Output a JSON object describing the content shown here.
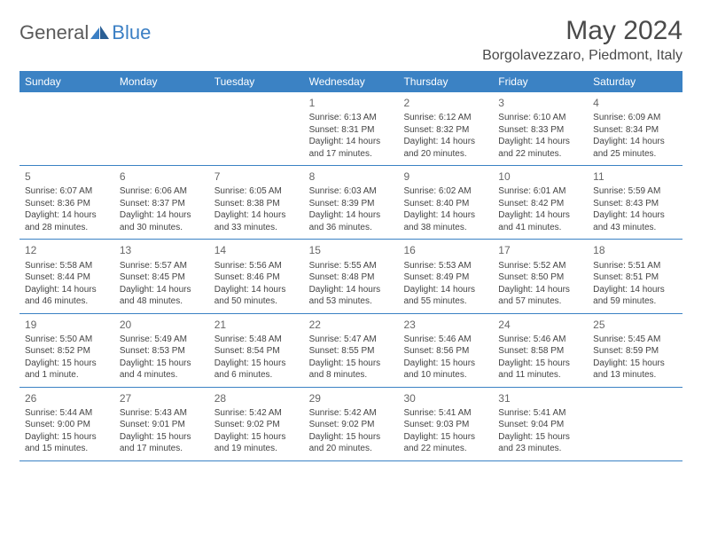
{
  "logo": {
    "text1": "General",
    "text2": "Blue"
  },
  "title": "May 2024",
  "location": "Borgolavezzaro, Piedmont, Italy",
  "colors": {
    "header_bg": "#3b82c4",
    "header_text": "#ffffff",
    "border": "#3b82c4",
    "body_text": "#444444",
    "daynum_text": "#666666",
    "title_text": "#4a4a4a",
    "logo_gray": "#5a5a5a",
    "logo_blue": "#3b7fc4",
    "background": "#ffffff"
  },
  "typography": {
    "title_fontsize": 30,
    "location_fontsize": 16,
    "dayheader_fontsize": 12,
    "daynum_fontsize": 12,
    "cell_fontsize": 10,
    "logo_fontsize": 22,
    "font_family": "Arial"
  },
  "dayNames": [
    "Sunday",
    "Monday",
    "Tuesday",
    "Wednesday",
    "Thursday",
    "Friday",
    "Saturday"
  ],
  "weeks": [
    [
      {
        "n": "",
        "l1": "",
        "l2": "",
        "l3": "",
        "l4": ""
      },
      {
        "n": "",
        "l1": "",
        "l2": "",
        "l3": "",
        "l4": ""
      },
      {
        "n": "",
        "l1": "",
        "l2": "",
        "l3": "",
        "l4": ""
      },
      {
        "n": "1",
        "l1": "Sunrise: 6:13 AM",
        "l2": "Sunset: 8:31 PM",
        "l3": "Daylight: 14 hours",
        "l4": "and 17 minutes."
      },
      {
        "n": "2",
        "l1": "Sunrise: 6:12 AM",
        "l2": "Sunset: 8:32 PM",
        "l3": "Daylight: 14 hours",
        "l4": "and 20 minutes."
      },
      {
        "n": "3",
        "l1": "Sunrise: 6:10 AM",
        "l2": "Sunset: 8:33 PM",
        "l3": "Daylight: 14 hours",
        "l4": "and 22 minutes."
      },
      {
        "n": "4",
        "l1": "Sunrise: 6:09 AM",
        "l2": "Sunset: 8:34 PM",
        "l3": "Daylight: 14 hours",
        "l4": "and 25 minutes."
      }
    ],
    [
      {
        "n": "5",
        "l1": "Sunrise: 6:07 AM",
        "l2": "Sunset: 8:36 PM",
        "l3": "Daylight: 14 hours",
        "l4": "and 28 minutes."
      },
      {
        "n": "6",
        "l1": "Sunrise: 6:06 AM",
        "l2": "Sunset: 8:37 PM",
        "l3": "Daylight: 14 hours",
        "l4": "and 30 minutes."
      },
      {
        "n": "7",
        "l1": "Sunrise: 6:05 AM",
        "l2": "Sunset: 8:38 PM",
        "l3": "Daylight: 14 hours",
        "l4": "and 33 minutes."
      },
      {
        "n": "8",
        "l1": "Sunrise: 6:03 AM",
        "l2": "Sunset: 8:39 PM",
        "l3": "Daylight: 14 hours",
        "l4": "and 36 minutes."
      },
      {
        "n": "9",
        "l1": "Sunrise: 6:02 AM",
        "l2": "Sunset: 8:40 PM",
        "l3": "Daylight: 14 hours",
        "l4": "and 38 minutes."
      },
      {
        "n": "10",
        "l1": "Sunrise: 6:01 AM",
        "l2": "Sunset: 8:42 PM",
        "l3": "Daylight: 14 hours",
        "l4": "and 41 minutes."
      },
      {
        "n": "11",
        "l1": "Sunrise: 5:59 AM",
        "l2": "Sunset: 8:43 PM",
        "l3": "Daylight: 14 hours",
        "l4": "and 43 minutes."
      }
    ],
    [
      {
        "n": "12",
        "l1": "Sunrise: 5:58 AM",
        "l2": "Sunset: 8:44 PM",
        "l3": "Daylight: 14 hours",
        "l4": "and 46 minutes."
      },
      {
        "n": "13",
        "l1": "Sunrise: 5:57 AM",
        "l2": "Sunset: 8:45 PM",
        "l3": "Daylight: 14 hours",
        "l4": "and 48 minutes."
      },
      {
        "n": "14",
        "l1": "Sunrise: 5:56 AM",
        "l2": "Sunset: 8:46 PM",
        "l3": "Daylight: 14 hours",
        "l4": "and 50 minutes."
      },
      {
        "n": "15",
        "l1": "Sunrise: 5:55 AM",
        "l2": "Sunset: 8:48 PM",
        "l3": "Daylight: 14 hours",
        "l4": "and 53 minutes."
      },
      {
        "n": "16",
        "l1": "Sunrise: 5:53 AM",
        "l2": "Sunset: 8:49 PM",
        "l3": "Daylight: 14 hours",
        "l4": "and 55 minutes."
      },
      {
        "n": "17",
        "l1": "Sunrise: 5:52 AM",
        "l2": "Sunset: 8:50 PM",
        "l3": "Daylight: 14 hours",
        "l4": "and 57 minutes."
      },
      {
        "n": "18",
        "l1": "Sunrise: 5:51 AM",
        "l2": "Sunset: 8:51 PM",
        "l3": "Daylight: 14 hours",
        "l4": "and 59 minutes."
      }
    ],
    [
      {
        "n": "19",
        "l1": "Sunrise: 5:50 AM",
        "l2": "Sunset: 8:52 PM",
        "l3": "Daylight: 15 hours",
        "l4": "and 1 minute."
      },
      {
        "n": "20",
        "l1": "Sunrise: 5:49 AM",
        "l2": "Sunset: 8:53 PM",
        "l3": "Daylight: 15 hours",
        "l4": "and 4 minutes."
      },
      {
        "n": "21",
        "l1": "Sunrise: 5:48 AM",
        "l2": "Sunset: 8:54 PM",
        "l3": "Daylight: 15 hours",
        "l4": "and 6 minutes."
      },
      {
        "n": "22",
        "l1": "Sunrise: 5:47 AM",
        "l2": "Sunset: 8:55 PM",
        "l3": "Daylight: 15 hours",
        "l4": "and 8 minutes."
      },
      {
        "n": "23",
        "l1": "Sunrise: 5:46 AM",
        "l2": "Sunset: 8:56 PM",
        "l3": "Daylight: 15 hours",
        "l4": "and 10 minutes."
      },
      {
        "n": "24",
        "l1": "Sunrise: 5:46 AM",
        "l2": "Sunset: 8:58 PM",
        "l3": "Daylight: 15 hours",
        "l4": "and 11 minutes."
      },
      {
        "n": "25",
        "l1": "Sunrise: 5:45 AM",
        "l2": "Sunset: 8:59 PM",
        "l3": "Daylight: 15 hours",
        "l4": "and 13 minutes."
      }
    ],
    [
      {
        "n": "26",
        "l1": "Sunrise: 5:44 AM",
        "l2": "Sunset: 9:00 PM",
        "l3": "Daylight: 15 hours",
        "l4": "and 15 minutes."
      },
      {
        "n": "27",
        "l1": "Sunrise: 5:43 AM",
        "l2": "Sunset: 9:01 PM",
        "l3": "Daylight: 15 hours",
        "l4": "and 17 minutes."
      },
      {
        "n": "28",
        "l1": "Sunrise: 5:42 AM",
        "l2": "Sunset: 9:02 PM",
        "l3": "Daylight: 15 hours",
        "l4": "and 19 minutes."
      },
      {
        "n": "29",
        "l1": "Sunrise: 5:42 AM",
        "l2": "Sunset: 9:02 PM",
        "l3": "Daylight: 15 hours",
        "l4": "and 20 minutes."
      },
      {
        "n": "30",
        "l1": "Sunrise: 5:41 AM",
        "l2": "Sunset: 9:03 PM",
        "l3": "Daylight: 15 hours",
        "l4": "and 22 minutes."
      },
      {
        "n": "31",
        "l1": "Sunrise: 5:41 AM",
        "l2": "Sunset: 9:04 PM",
        "l3": "Daylight: 15 hours",
        "l4": "and 23 minutes."
      },
      {
        "n": "",
        "l1": "",
        "l2": "",
        "l3": "",
        "l4": ""
      }
    ]
  ]
}
